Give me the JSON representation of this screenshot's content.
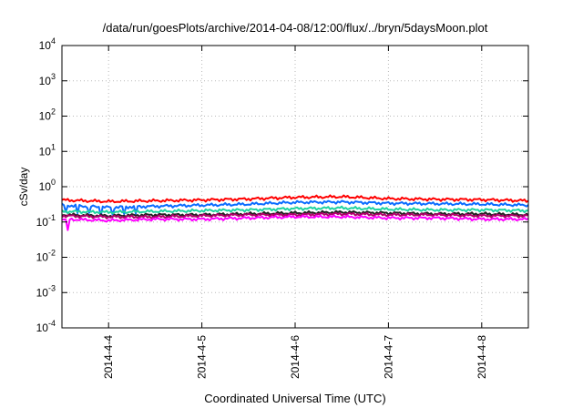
{
  "chart_data": {
    "type": "line",
    "title": "/data/run/goesPlots/archive/2014-04-08/12:00/flux/../bryn/5daysMoon.plot",
    "xlabel": "Coordinated Universal Time (UTC)",
    "ylabel": "cSv/day",
    "y_scale": "log",
    "ylim": [
      0.0001,
      10000
    ],
    "y_ticks": [
      {
        "base": "10",
        "exp": "-4",
        "value": 0.0001
      },
      {
        "base": "10",
        "exp": "-3",
        "value": 0.001
      },
      {
        "base": "10",
        "exp": "-2",
        "value": 0.01
      },
      {
        "base": "10",
        "exp": "-1",
        "value": 0.1
      },
      {
        "base": "10",
        "exp": "0",
        "value": 1
      },
      {
        "base": "10",
        "exp": "1",
        "value": 10
      },
      {
        "base": "10",
        "exp": "2",
        "value": 100
      },
      {
        "base": "10",
        "exp": "3",
        "value": 1000
      },
      {
        "base": "10",
        "exp": "4",
        "value": 10000
      }
    ],
    "xlim": [
      "2014-04-03 12:00",
      "2014-04-08 12:00"
    ],
    "x_ticks": [
      {
        "label": "2014-4-4",
        "value": "2014-04-04"
      },
      {
        "label": "2014-4-5",
        "value": "2014-04-05"
      },
      {
        "label": "2014-4-6",
        "value": "2014-04-06"
      },
      {
        "label": "2014-4-7",
        "value": "2014-04-07"
      },
      {
        "label": "2014-4-8",
        "value": "2014-04-08"
      }
    ],
    "grid": true,
    "x": [
      "2014-04-03 12:00",
      "2014-04-04 00:00",
      "2014-04-04 12:00",
      "2014-04-05 00:00",
      "2014-04-05 12:00",
      "2014-04-06 00:00",
      "2014-04-06 12:00",
      "2014-04-07 00:00",
      "2014-04-07 12:00",
      "2014-04-08 00:00",
      "2014-04-08 12:00"
    ],
    "series": [
      {
        "color": "#ff0000",
        "values": [
          0.42,
          0.38,
          0.4,
          0.42,
          0.45,
          0.5,
          0.52,
          0.46,
          0.44,
          0.43,
          0.4
        ]
      },
      {
        "color": "#0a6cff",
        "values": [
          0.3,
          0.26,
          0.28,
          0.3,
          0.32,
          0.36,
          0.37,
          0.34,
          0.33,
          0.32,
          0.3
        ]
      },
      {
        "color": "#1fd3a0",
        "values": [
          0.2,
          0.19,
          0.2,
          0.21,
          0.22,
          0.24,
          0.25,
          0.23,
          0.22,
          0.22,
          0.21
        ]
      },
      {
        "color": "#222222",
        "values": [
          0.16,
          0.15,
          0.16,
          0.16,
          0.17,
          0.18,
          0.19,
          0.18,
          0.17,
          0.17,
          0.16
        ]
      },
      {
        "color": "#b0006a",
        "values": [
          0.15,
          0.14,
          0.14,
          0.15,
          0.16,
          0.16,
          0.17,
          0.16,
          0.16,
          0.15,
          0.15
        ]
      },
      {
        "color": "#ff00ff",
        "values": [
          0.12,
          0.11,
          0.12,
          0.12,
          0.13,
          0.14,
          0.14,
          0.13,
          0.13,
          0.12,
          0.12
        ]
      }
    ]
  }
}
